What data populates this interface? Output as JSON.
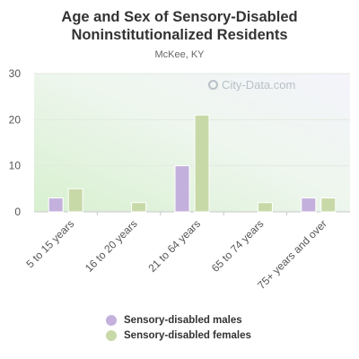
{
  "chart_data": {
    "type": "bar",
    "title_line1": "Age and Sex of Sensory-Disabled",
    "title_line2": "Noninstitutionalized Residents",
    "subtitle": "McKee, KY",
    "categories": [
      "5 to 15 years",
      "16 to 20 years",
      "21 to 64 years",
      "65 to 74 years",
      "75+ years and over"
    ],
    "series": [
      {
        "name": "Sensory-disabled males",
        "color": "#c3b0dc",
        "values": [
          3,
          0,
          10,
          0,
          3
        ]
      },
      {
        "name": "Sensory-disabled females",
        "color": "#c8d9a8",
        "values": [
          5,
          2,
          21,
          2,
          3
        ]
      }
    ],
    "ylim": [
      0,
      30
    ],
    "yticks": [
      "0",
      "10",
      "20",
      "30"
    ],
    "grid": true,
    "legend_position": "bottom"
  },
  "watermark": "City-Data.com"
}
